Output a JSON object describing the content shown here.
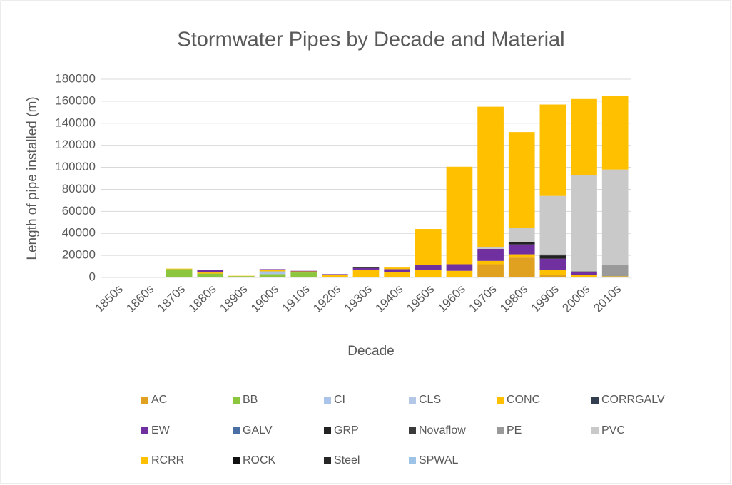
{
  "chart_data": {
    "type": "bar",
    "stacked": true,
    "title": "Stormwater Pipes by Decade and Material",
    "x_label": "Decade",
    "y_label": "Length of pipe installed (m)",
    "categories": [
      "1850s",
      "1860s",
      "1870s",
      "1880s",
      "1890s",
      "1900s",
      "1910s",
      "1920s",
      "1930s",
      "1940s",
      "1950s",
      "1960s",
      "1970s",
      "1980s",
      "1990s",
      "2000s",
      "2010s"
    ],
    "ylim": [
      0,
      180000
    ],
    "yticks": [
      0,
      20000,
      40000,
      60000,
      80000,
      100000,
      120000,
      140000,
      160000,
      180000
    ],
    "grid": true,
    "legend": "bottom",
    "series": [
      {
        "name": "AC",
        "color": "#e0a020",
        "values": [
          0,
          0,
          0,
          0,
          0,
          0,
          0,
          0,
          0,
          0,
          0,
          0,
          12000,
          18000,
          2000,
          0,
          0
        ]
      },
      {
        "name": "BB",
        "color": "#8cc63f",
        "values": [
          0,
          0,
          7500,
          3500,
          1200,
          3000,
          4500,
          0,
          0,
          0,
          0,
          0,
          0,
          0,
          0,
          0,
          0
        ]
      },
      {
        "name": "CI",
        "color": "#a9c4e8",
        "values": [
          0,
          0,
          0,
          0,
          0,
          2500,
          0,
          0,
          0,
          0,
          0,
          0,
          0,
          0,
          0,
          0,
          0
        ]
      },
      {
        "name": "CLS",
        "color": "#b4c7e7",
        "values": [
          0,
          0,
          0,
          0,
          0,
          0,
          0,
          0,
          0,
          0,
          0,
          0,
          0,
          0,
          0,
          0,
          0
        ]
      },
      {
        "name": "CONC",
        "color": "#ffc000",
        "values": [
          0,
          0,
          500,
          1000,
          300,
          1000,
          1000,
          2500,
          7000,
          5000,
          7000,
          6000,
          3000,
          3000,
          5000,
          2000,
          1000
        ]
      },
      {
        "name": "CORRGALV",
        "color": "#333f50",
        "values": [
          0,
          0,
          0,
          0,
          0,
          0,
          0,
          0,
          0,
          0,
          0,
          0,
          0,
          0,
          0,
          0,
          0
        ]
      },
      {
        "name": "EW",
        "color": "#7030a0",
        "values": [
          0,
          0,
          0,
          2000,
          0,
          1000,
          500,
          500,
          1500,
          2500,
          4000,
          6000,
          11000,
          9000,
          10000,
          3000,
          0
        ]
      },
      {
        "name": "GALV",
        "color": "#4a6fa5",
        "values": [
          0,
          0,
          0,
          0,
          0,
          0,
          0,
          0,
          0,
          0,
          0,
          0,
          0,
          0,
          0,
          0,
          0
        ]
      },
      {
        "name": "GRP",
        "color": "#222222",
        "values": [
          0,
          0,
          0,
          0,
          0,
          0,
          0,
          0,
          0,
          0,
          0,
          0,
          0,
          2000,
          3000,
          0,
          0
        ]
      },
      {
        "name": "Novaflow",
        "color": "#3a3a3a",
        "values": [
          0,
          0,
          0,
          0,
          0,
          0,
          0,
          0,
          0,
          0,
          0,
          0,
          0,
          0,
          0,
          0,
          0
        ]
      },
      {
        "name": "PE",
        "color": "#9a9a9a",
        "values": [
          0,
          0,
          0,
          0,
          0,
          0,
          0,
          0,
          0,
          0,
          0,
          0,
          0,
          0,
          1000,
          1000,
          10000
        ]
      },
      {
        "name": "PVC",
        "color": "#c9c9c9",
        "values": [
          0,
          0,
          0,
          0,
          0,
          0,
          0,
          0,
          0,
          0,
          0,
          0,
          1500,
          13000,
          53000,
          87000,
          87000
        ]
      },
      {
        "name": "RCRR",
        "color": "#ffc000",
        "values": [
          0,
          0,
          0,
          0,
          0,
          0,
          0,
          0,
          0,
          1500,
          33000,
          88500,
          127500,
          87000,
          83000,
          69000,
          67000
        ]
      },
      {
        "name": "ROCK",
        "color": "#111111",
        "values": [
          0,
          0,
          0,
          0,
          0,
          0,
          0,
          0,
          500,
          0,
          0,
          0,
          0,
          0,
          0,
          0,
          0
        ]
      },
      {
        "name": "Steel",
        "color": "#262626",
        "values": [
          0,
          0,
          0,
          0,
          0,
          0,
          0,
          0,
          0,
          0,
          0,
          0,
          0,
          0,
          0,
          0,
          0
        ]
      },
      {
        "name": "SPWAL",
        "color": "#9dc3e6",
        "values": [
          0,
          0,
          0,
          0,
          0,
          0,
          0,
          0,
          0,
          0,
          0,
          0,
          0,
          0,
          0,
          0,
          0
        ]
      }
    ]
  }
}
